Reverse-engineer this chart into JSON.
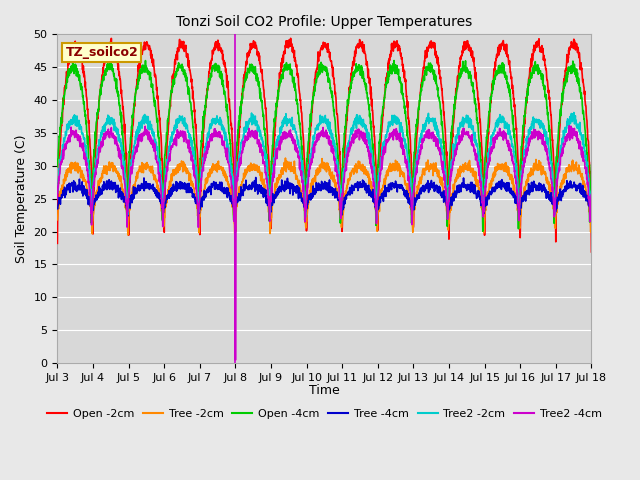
{
  "title": "Tonzi Soil CO2 Profile: Upper Temperatures",
  "ylabel": "Soil Temperature (C)",
  "xlabel": "Time",
  "ylim": [
    0,
    50
  ],
  "yticks": [
    0,
    5,
    10,
    15,
    20,
    25,
    30,
    35,
    40,
    45,
    50
  ],
  "xtick_labels": [
    "Jul 3",
    "Jul 4",
    "Jul 5",
    "Jul 6",
    "Jul 7",
    "Jul 8",
    "Jul 9",
    "Jul 10",
    "Jul 11",
    "Jul 12",
    "Jul 13",
    "Jul 14",
    "Jul 15",
    "Jul 16",
    "Jul 17",
    "Jul 18"
  ],
  "fig_bg_color": "#e8e8e8",
  "plot_bg_color": "#d8d8d8",
  "grid_color": "#ffffff",
  "legend_label": "TZ_soilco2",
  "legend_bg": "#ffffcc",
  "legend_border": "#cc9900",
  "series_order": [
    "Open -2cm",
    "Tree -2cm",
    "Open -4cm",
    "Tree -4cm",
    "Tree2 -2cm",
    "Tree2 -4cm"
  ],
  "series": {
    "Open -2cm": {
      "color": "#ff0000",
      "lw": 1.2,
      "peak": 48.5,
      "trough": 17.5,
      "phase": 0.0
    },
    "Tree -2cm": {
      "color": "#ff8800",
      "lw": 1.2,
      "peak": 30.0,
      "trough": 19.5,
      "phase": 0.02
    },
    "Open -4cm": {
      "color": "#00cc00",
      "lw": 1.2,
      "peak": 45.0,
      "trough": 19.5,
      "phase": 0.05
    },
    "Tree -4cm": {
      "color": "#0000cc",
      "lw": 1.2,
      "peak": 27.0,
      "trough": 22.5,
      "phase": 0.02
    },
    "Tree2 -2cm": {
      "color": "#00cccc",
      "lw": 1.2,
      "peak": 37.0,
      "trough": 21.5,
      "phase": 0.03
    },
    "Tree2 -4cm": {
      "color": "#cc00cc",
      "lw": 1.2,
      "peak": 35.0,
      "trough": 20.5,
      "phase": 0.04
    }
  },
  "n_days": 15,
  "pts_per_day": 144,
  "vertical_line_day": 5.0,
  "vertical_line_color": "#cc00cc",
  "vertical_line_lw": 1.2,
  "title_fontsize": 10,
  "axis_label_fontsize": 9,
  "tick_fontsize": 8,
  "legend_fontsize": 8
}
